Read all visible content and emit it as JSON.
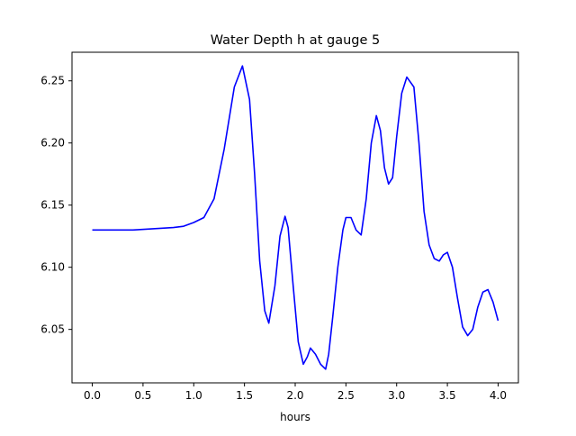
{
  "chart_data": {
    "type": "line",
    "title": "Water Depth h at gauge 5",
    "xlabel": "hours",
    "ylabel": "",
    "xlim": [
      -0.2,
      4.2
    ],
    "ylim": [
      6.007,
      6.273
    ],
    "xticks": [
      0.0,
      0.5,
      1.0,
      1.5,
      2.0,
      2.5,
      3.0,
      3.5,
      4.0
    ],
    "xtick_labels": [
      "0.0",
      "0.5",
      "1.0",
      "1.5",
      "2.0",
      "2.5",
      "3.0",
      "3.5",
      "4.0"
    ],
    "yticks": [
      6.05,
      6.1,
      6.15,
      6.2,
      6.25
    ],
    "ytick_labels": [
      "6.05",
      "6.10",
      "6.15",
      "6.20",
      "6.25"
    ],
    "grid": false,
    "line_color": "#0000ff",
    "series": [
      {
        "x": [
          0.0,
          0.2,
          0.4,
          0.6,
          0.8,
          0.9,
          1.0,
          1.1,
          1.2,
          1.3,
          1.4,
          1.48,
          1.55,
          1.6,
          1.65,
          1.7,
          1.74,
          1.8,
          1.85,
          1.9,
          1.93,
          1.98,
          2.03,
          2.08,
          2.12,
          2.15,
          2.2,
          2.25,
          2.3,
          2.33,
          2.37,
          2.42,
          2.47,
          2.5,
          2.55,
          2.6,
          2.65,
          2.7,
          2.75,
          2.8,
          2.84,
          2.88,
          2.92,
          2.96,
          3.0,
          3.05,
          3.1,
          3.17,
          3.22,
          3.27,
          3.32,
          3.37,
          3.42,
          3.46,
          3.5,
          3.55,
          3.6,
          3.65,
          3.7,
          3.75,
          3.8,
          3.85,
          3.9,
          3.95,
          4.0
        ],
        "y": [
          6.13,
          6.13,
          6.13,
          6.131,
          6.132,
          6.133,
          6.136,
          6.14,
          6.155,
          6.195,
          6.245,
          6.262,
          6.235,
          6.175,
          6.105,
          6.065,
          6.055,
          6.085,
          6.125,
          6.141,
          6.132,
          6.085,
          6.04,
          6.022,
          6.028,
          6.035,
          6.03,
          6.022,
          6.018,
          6.03,
          6.06,
          6.1,
          6.13,
          6.14,
          6.14,
          6.13,
          6.126,
          6.155,
          6.2,
          6.222,
          6.21,
          6.18,
          6.167,
          6.172,
          6.205,
          6.24,
          6.253,
          6.245,
          6.2,
          6.145,
          6.118,
          6.107,
          6.105,
          6.11,
          6.112,
          6.1,
          6.075,
          6.052,
          6.045,
          6.05,
          6.068,
          6.08,
          6.082,
          6.072,
          6.057
        ]
      }
    ]
  }
}
